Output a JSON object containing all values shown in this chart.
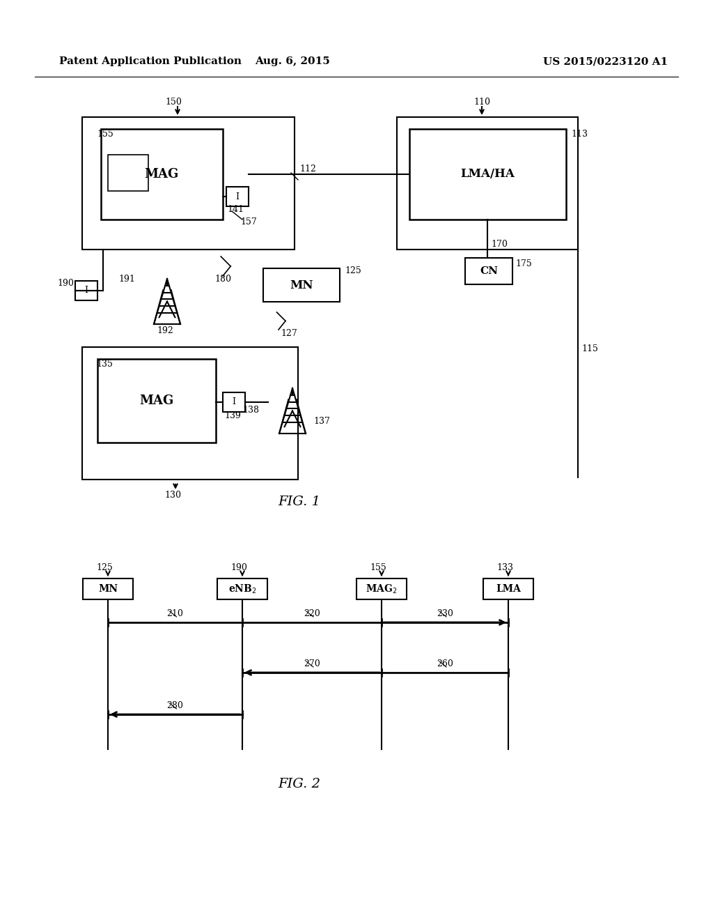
{
  "header_left": "Patent Application Publication",
  "header_center": "Aug. 6, 2015",
  "header_right": "US 2015/0223120 A1",
  "fig1_label": "FIG. 1",
  "fig2_label": "FIG. 2",
  "background": "#ffffff"
}
